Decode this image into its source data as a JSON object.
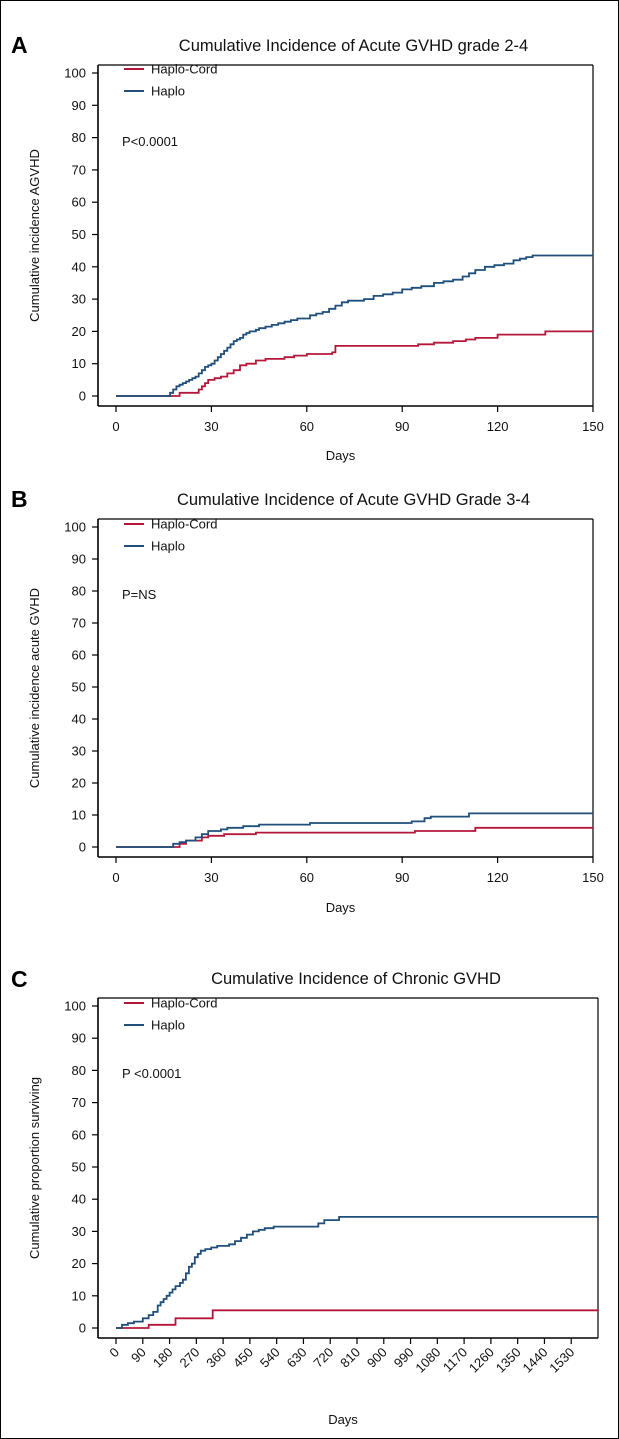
{
  "chart_data": [
    {
      "panel_label": "A",
      "type": "line",
      "step": true,
      "title": "Cumulative Incidence of Acute GVHD grade 2-4",
      "xlabel": "Days",
      "ylabel": "Cumulative incidence AGVHD",
      "xlim": [
        0,
        150
      ],
      "ylim": [
        0,
        100
      ],
      "xticks": [
        "0",
        "30",
        "60",
        "90",
        "120",
        "150"
      ],
      "yticks": [
        "0",
        "10",
        "20",
        "30",
        "40",
        "50",
        "60",
        "70",
        "80",
        "90",
        "100"
      ],
      "tick_rotation": 0,
      "legend_position": "top-left",
      "annotation": "P<0.0001",
      "colors": {
        "haplo_cord": "#b5173a",
        "haplo": "#1f4f7a"
      },
      "series": [
        {
          "name": "Haplo-Cord",
          "color": "#b5173a",
          "x": [
            0,
            17,
            20,
            23,
            26,
            27,
            28,
            29,
            31,
            33,
            35,
            37,
            39,
            41,
            44,
            47,
            50,
            53,
            56,
            60,
            63,
            66,
            68,
            69,
            90,
            95,
            100,
            106,
            110,
            113,
            120,
            130,
            135,
            150
          ],
          "y": [
            0,
            0,
            1,
            1,
            2,
            3,
            4,
            5,
            5.5,
            6,
            7,
            8,
            9.5,
            10,
            11,
            11.5,
            11.5,
            12,
            12.5,
            13,
            13,
            13,
            13.5,
            15.5,
            15.5,
            16,
            16.5,
            17,
            17.5,
            18,
            19,
            19,
            20,
            20
          ]
        },
        {
          "name": "Haplo",
          "color": "#1f4f7a",
          "x": [
            0,
            16,
            17,
            18,
            19,
            20,
            21,
            22,
            23,
            24,
            25,
            26,
            27,
            28,
            29,
            30,
            31,
            32,
            33,
            34,
            35,
            36,
            37,
            38,
            39,
            40,
            41,
            42,
            43,
            44,
            45,
            47,
            49,
            51,
            53,
            55,
            57,
            59,
            61,
            63,
            65,
            67,
            69,
            71,
            73,
            75,
            78,
            81,
            84,
            87,
            90,
            93,
            96,
            100,
            103,
            106,
            109,
            111,
            113,
            116,
            119,
            122,
            125,
            127,
            129,
            131,
            150
          ],
          "y": [
            0,
            0,
            1,
            2,
            3,
            3.5,
            4,
            4.5,
            5,
            5.5,
            6,
            7,
            8,
            9,
            9.5,
            10,
            11,
            12,
            13,
            14,
            15,
            16,
            17,
            17.5,
            18,
            19,
            19.5,
            20,
            20,
            20.5,
            21,
            21.5,
            22,
            22.5,
            23,
            23.5,
            24,
            24,
            25,
            25.5,
            26,
            27,
            28,
            29,
            29.5,
            29.5,
            30,
            31,
            31.5,
            32,
            33,
            33.5,
            34,
            35,
            35.5,
            36,
            37,
            38,
            39,
            40,
            40.5,
            41,
            42,
            42.5,
            43,
            43.5,
            43.5
          ]
        }
      ]
    },
    {
      "panel_label": "B",
      "type": "line",
      "step": true,
      "title": "Cumulative Incidence of Acute GVHD Grade 3-4",
      "xlabel": "Days",
      "ylabel": "Cumulative incidence acute GVHD",
      "xlim": [
        0,
        150
      ],
      "ylim": [
        0,
        100
      ],
      "xticks": [
        "0",
        "30",
        "60",
        "90",
        "120",
        "150"
      ],
      "yticks": [
        "0",
        "10",
        "20",
        "30",
        "40",
        "50",
        "60",
        "70",
        "80",
        "90",
        "100"
      ],
      "tick_rotation": 0,
      "legend_position": "top-left",
      "annotation": "P=NS",
      "colors": {
        "haplo_cord": "#b5173a",
        "haplo": "#1f4f7a"
      },
      "series": [
        {
          "name": "Haplo-Cord",
          "color": "#b5173a",
          "x": [
            0,
            17,
            20,
            22,
            27,
            29,
            34,
            44,
            94,
            113,
            150
          ],
          "y": [
            0,
            0,
            1,
            2,
            3,
            3.5,
            4,
            4.5,
            5,
            6,
            6
          ]
        },
        {
          "name": "Haplo",
          "color": "#1f4f7a",
          "x": [
            0,
            16,
            18,
            20,
            22,
            25,
            27,
            29,
            33,
            35,
            40,
            45,
            61,
            93,
            97,
            99,
            111,
            150
          ],
          "y": [
            0,
            0,
            1,
            1.5,
            2,
            3,
            4,
            5,
            5.5,
            6,
            6.5,
            7,
            7.5,
            8,
            9,
            9.5,
            10.5,
            10.5
          ]
        }
      ]
    },
    {
      "panel_label": "C",
      "type": "line",
      "step": true,
      "title": "Cumulative Incidence of Chronic GVHD",
      "xlabel": "Days",
      "ylabel": "Cumulative proportion surviving",
      "xlim": [
        0,
        1620
      ],
      "ylim": [
        0,
        100
      ],
      "xticks": [
        "0",
        "90",
        "180",
        "270",
        "360",
        "450",
        "540",
        "630",
        "720",
        "810",
        "900",
        "990",
        "1080",
        "1170",
        "1260",
        "1350",
        "1440",
        "1530"
      ],
      "yticks": [
        "0",
        "10",
        "20",
        "30",
        "40",
        "50",
        "60",
        "70",
        "80",
        "90",
        "100"
      ],
      "tick_rotation": -45,
      "legend_position": "top-left",
      "annotation": "P <0.0001",
      "colors": {
        "haplo_cord": "#b5173a",
        "haplo": "#1f4f7a"
      },
      "series": [
        {
          "name": "Haplo-Cord",
          "color": "#b5173a",
          "x": [
            0,
            100,
            110,
            180,
            200,
            310,
            325,
            1620
          ],
          "y": [
            0,
            0,
            1,
            1,
            3,
            3,
            5.5,
            5.5
          ]
        },
        {
          "name": "Haplo",
          "color": "#1f4f7a",
          "x": [
            0,
            20,
            40,
            60,
            90,
            110,
            125,
            140,
            150,
            160,
            170,
            180,
            190,
            200,
            215,
            225,
            235,
            245,
            255,
            265,
            275,
            285,
            300,
            320,
            340,
            380,
            400,
            420,
            440,
            460,
            480,
            500,
            530,
            680,
            700,
            750,
            1620
          ],
          "y": [
            0,
            1,
            1.5,
            2,
            3,
            4,
            5,
            7,
            8,
            9,
            10,
            11,
            12,
            13,
            14,
            15,
            17,
            19,
            20,
            22,
            23,
            24,
            24.5,
            25,
            25.5,
            26,
            27,
            28,
            29,
            30,
            30.5,
            31,
            31.5,
            32.5,
            33.5,
            34.5,
            34.5
          ]
        }
      ]
    }
  ]
}
